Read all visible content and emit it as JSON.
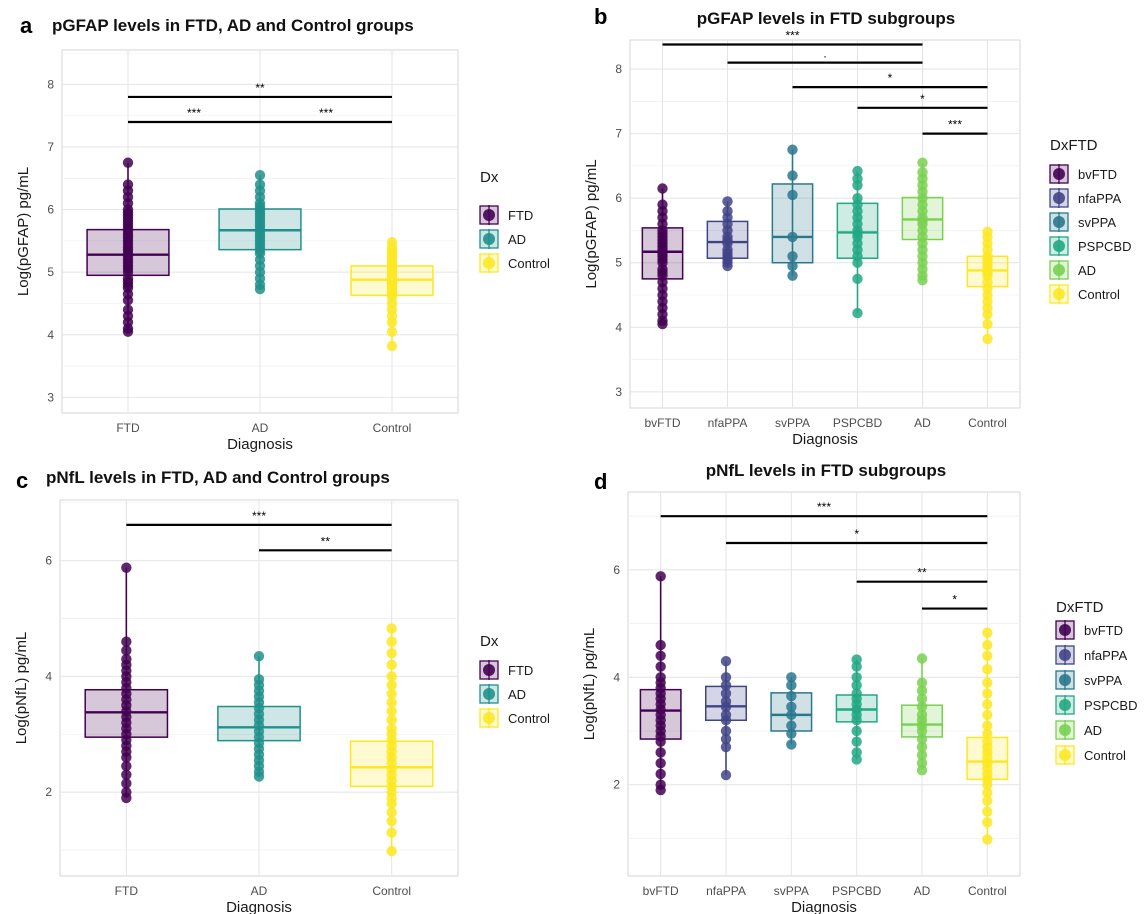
{
  "figure": {
    "panels": [
      {
        "letter": "a",
        "title": "pGFAP levels in FTD, AD and Control groups"
      },
      {
        "letter": "b",
        "title": "pGFAP levels in FTD subgroups"
      },
      {
        "letter": "c",
        "title": "pNfL levels in FTD, AD and Control groups"
      },
      {
        "letter": "d",
        "title": "pNfL levels in FTD subgroups"
      }
    ]
  },
  "colors": {
    "FTD": "#440154",
    "AD": "#21908C",
    "Control": "#FDE725",
    "bvFTD": "#440154",
    "nfaPPA": "#414487",
    "svPPA": "#2A788E",
    "PSPCBD": "#22A884",
    "AD_sub": "#7AD151",
    "Control_sub": "#FDE725"
  },
  "chart_data": [
    {
      "type": "box",
      "panel": "a",
      "title": "pGFAP levels in FTD, AD and Control groups",
      "xlabel": "Diagnosis",
      "ylabel": "Log(pGFAP) pg/mL",
      "ylim": [
        2.75,
        8.55
      ],
      "yticks": [
        3,
        4,
        5,
        6,
        7,
        8
      ],
      "grid": true,
      "categories": [
        "FTD",
        "AD",
        "Control"
      ],
      "legend": {
        "title": "Dx",
        "entries": [
          "FTD",
          "AD",
          "Control"
        ],
        "position": "right"
      },
      "boxes": [
        {
          "name": "FTD",
          "q1": 4.95,
          "median": 5.28,
          "q3": 5.68,
          "min": 4.05,
          "max": 6.75,
          "points": [
            4.05,
            4.1,
            4.2,
            4.3,
            4.4,
            4.55,
            4.65,
            4.75,
            4.8,
            4.85,
            4.9,
            5.0,
            5.05,
            5.1,
            5.15,
            5.2,
            5.25,
            5.3,
            5.35,
            5.4,
            5.45,
            5.5,
            5.55,
            5.6,
            5.65,
            5.7,
            5.75,
            5.8,
            5.85,
            5.9,
            5.95,
            6.0,
            6.1,
            6.2,
            6.3,
            6.4,
            6.75
          ]
        },
        {
          "name": "AD",
          "q1": 5.36,
          "median": 5.67,
          "q3": 6.01,
          "min": 4.73,
          "max": 6.55,
          "points": [
            4.73,
            4.8,
            4.9,
            5.0,
            5.1,
            5.2,
            5.3,
            5.35,
            5.4,
            5.45,
            5.5,
            5.55,
            5.6,
            5.65,
            5.7,
            5.75,
            5.8,
            5.85,
            5.9,
            5.95,
            6.0,
            6.05,
            6.1,
            6.2,
            6.3,
            6.4,
            6.55
          ]
        },
        {
          "name": "Control",
          "q1": 4.63,
          "median": 4.88,
          "q3": 5.1,
          "min": 3.82,
          "max": 5.48,
          "points": [
            3.82,
            4.05,
            4.2,
            4.3,
            4.4,
            4.5,
            4.6,
            4.65,
            4.7,
            4.75,
            4.8,
            4.85,
            4.9,
            4.95,
            5.0,
            5.05,
            5.1,
            5.15,
            5.2,
            5.25,
            5.3,
            5.35,
            5.4,
            5.48
          ]
        }
      ],
      "annotations": [
        {
          "from": "FTD",
          "to": "Control",
          "y": 7.8,
          "label": "**"
        },
        {
          "from": "FTD",
          "to": "AD",
          "y": 7.4,
          "label": "***"
        },
        {
          "from": "AD",
          "to": "Control",
          "y": 7.4,
          "label": "***"
        }
      ]
    },
    {
      "type": "box",
      "panel": "b",
      "title": "pGFAP levels in FTD subgroups",
      "xlabel": "Diagnosis",
      "ylabel": "Log(pGFAP) pg/mL",
      "ylim": [
        2.75,
        8.45
      ],
      "yticks": [
        3,
        4,
        5,
        6,
        7,
        8
      ],
      "grid": true,
      "categories": [
        "bvFTD",
        "nfaPPA",
        "svPPA",
        "PSPCBD",
        "AD",
        "Control"
      ],
      "legend": {
        "title": "DxFTD",
        "entries": [
          "bvFTD",
          "nfaPPA",
          "svPPA",
          "PSPCBD",
          "AD",
          "Control"
        ],
        "position": "right"
      },
      "boxes": [
        {
          "name": "bvFTD",
          "q1": 4.75,
          "median": 5.17,
          "q3": 5.54,
          "min": 4.05,
          "max": 6.15,
          "points": [
            4.05,
            4.1,
            4.2,
            4.3,
            4.4,
            4.5,
            4.6,
            4.7,
            4.8,
            4.85,
            4.9,
            5.0,
            5.05,
            5.1,
            5.15,
            5.2,
            5.25,
            5.3,
            5.35,
            5.4,
            5.45,
            5.5,
            5.6,
            5.7,
            5.8,
            5.9,
            6.15
          ]
        },
        {
          "name": "nfaPPA",
          "q1": 5.07,
          "median": 5.32,
          "q3": 5.64,
          "min": 4.95,
          "max": 5.95,
          "points": [
            4.95,
            5.0,
            5.05,
            5.1,
            5.15,
            5.2,
            5.3,
            5.35,
            5.4,
            5.5,
            5.6,
            5.7,
            5.8,
            5.95
          ]
        },
        {
          "name": "svPPA",
          "q1": 5.0,
          "median": 5.4,
          "q3": 6.22,
          "min": 4.8,
          "max": 6.75,
          "points": [
            4.8,
            4.95,
            5.1,
            5.4,
            6.05,
            6.35,
            6.75
          ]
        },
        {
          "name": "PSPCBD",
          "q1": 5.07,
          "median": 5.47,
          "q3": 5.92,
          "min": 4.22,
          "max": 6.42,
          "points": [
            4.22,
            4.75,
            5.0,
            5.1,
            5.2,
            5.3,
            5.4,
            5.45,
            5.5,
            5.6,
            5.7,
            5.8,
            5.9,
            6.0,
            6.2,
            6.3,
            6.42
          ]
        },
        {
          "name": "AD",
          "q1": 5.36,
          "median": 5.67,
          "q3": 6.01,
          "min": 4.73,
          "max": 6.55,
          "points": [
            4.73,
            4.8,
            4.9,
            5.0,
            5.1,
            5.2,
            5.3,
            5.4,
            5.5,
            5.6,
            5.65,
            5.7,
            5.8,
            5.9,
            6.0,
            6.1,
            6.2,
            6.3,
            6.4,
            6.55
          ]
        },
        {
          "name": "Control",
          "q1": 4.63,
          "median": 4.88,
          "q3": 5.1,
          "min": 3.82,
          "max": 5.48,
          "points": [
            3.82,
            4.05,
            4.2,
            4.3,
            4.4,
            4.5,
            4.6,
            4.7,
            4.8,
            4.85,
            4.9,
            4.95,
            5.0,
            5.05,
            5.1,
            5.2,
            5.3,
            5.4,
            5.48
          ]
        }
      ],
      "annotations": [
        {
          "from": "bvFTD",
          "to": "AD",
          "y": 8.38,
          "label": "***"
        },
        {
          "from": "nfaPPA",
          "to": "AD",
          "y": 8.1,
          "label": "."
        },
        {
          "from": "svPPA",
          "to": "Control",
          "y": 7.72,
          "label": "*"
        },
        {
          "from": "PSPCBD",
          "to": "Control",
          "y": 7.4,
          "label": "*"
        },
        {
          "from": "AD",
          "to": "Control",
          "y": 7.0,
          "label": "***"
        }
      ]
    },
    {
      "type": "box",
      "panel": "c",
      "title": "pNfL levels in FTD, AD and Control groups",
      "xlabel": "Diagnosis",
      "ylabel": "Log(pNfL) pg/mL",
      "ylim": [
        0.55,
        7.05
      ],
      "yticks": [
        2,
        4,
        6
      ],
      "grid": true,
      "categories": [
        "FTD",
        "AD",
        "Control"
      ],
      "legend": {
        "title": "Dx",
        "entries": [
          "FTD",
          "AD",
          "Control"
        ],
        "position": "right"
      },
      "boxes": [
        {
          "name": "FTD",
          "q1": 2.95,
          "median": 3.38,
          "q3": 3.77,
          "min": 1.9,
          "max": 5.88,
          "points": [
            1.9,
            2.0,
            2.15,
            2.3,
            2.45,
            2.6,
            2.7,
            2.8,
            2.9,
            3.0,
            3.1,
            3.2,
            3.3,
            3.4,
            3.5,
            3.6,
            3.7,
            3.8,
            3.9,
            4.0,
            4.1,
            4.2,
            4.3,
            4.45,
            4.6,
            5.88
          ]
        },
        {
          "name": "AD",
          "q1": 2.89,
          "median": 3.12,
          "q3": 3.48,
          "min": 2.27,
          "max": 4.35,
          "points": [
            2.27,
            2.35,
            2.45,
            2.55,
            2.65,
            2.75,
            2.85,
            2.95,
            3.05,
            3.15,
            3.25,
            3.35,
            3.45,
            3.55,
            3.65,
            3.75,
            3.85,
            3.95,
            4.35
          ]
        },
        {
          "name": "Control",
          "q1": 2.1,
          "median": 2.43,
          "q3": 2.88,
          "min": 0.98,
          "max": 4.83,
          "points": [
            0.98,
            1.3,
            1.5,
            1.65,
            1.8,
            1.9,
            2.0,
            2.1,
            2.2,
            2.3,
            2.4,
            2.5,
            2.6,
            2.7,
            2.8,
            2.9,
            3.0,
            3.1,
            3.25,
            3.4,
            3.55,
            3.7,
            3.85,
            4.0,
            4.2,
            4.4,
            4.6,
            4.83
          ]
        }
      ],
      "annotations": [
        {
          "from": "FTD",
          "to": "Control",
          "y": 6.62,
          "label": "***"
        },
        {
          "from": "AD",
          "to": "Control",
          "y": 6.18,
          "label": "**"
        }
      ]
    },
    {
      "type": "box",
      "panel": "d",
      "title": "pNfL levels in FTD subgroups",
      "xlabel": "Diagnosis",
      "ylabel": "Log(pNfL) pg/mL",
      "ylim": [
        0.3,
        7.45
      ],
      "yticks": [
        2,
        4,
        6
      ],
      "grid": true,
      "categories": [
        "bvFTD",
        "nfaPPA",
        "svPPA",
        "PSPCBD",
        "AD",
        "Control"
      ],
      "legend": {
        "title": "DxFTD",
        "entries": [
          "bvFTD",
          "nfaPPA",
          "svPPA",
          "PSPCBD",
          "AD",
          "Control"
        ],
        "position": "right"
      },
      "boxes": [
        {
          "name": "bvFTD",
          "q1": 2.85,
          "median": 3.38,
          "q3": 3.77,
          "min": 1.9,
          "max": 5.88,
          "points": [
            1.9,
            2.0,
            2.2,
            2.4,
            2.6,
            2.8,
            2.9,
            3.0,
            3.1,
            3.2,
            3.3,
            3.4,
            3.5,
            3.6,
            3.7,
            3.8,
            3.9,
            4.0,
            4.2,
            4.4,
            4.6,
            5.88
          ]
        },
        {
          "name": "nfaPPA",
          "q1": 3.2,
          "median": 3.46,
          "q3": 3.83,
          "min": 2.18,
          "max": 4.3,
          "points": [
            2.18,
            2.7,
            2.85,
            3.0,
            3.2,
            3.3,
            3.45,
            3.55,
            3.7,
            3.85,
            4.0,
            4.3
          ]
        },
        {
          "name": "svPPA",
          "q1": 3.0,
          "median": 3.3,
          "q3": 3.71,
          "min": 2.75,
          "max": 4.0,
          "points": [
            2.75,
            2.95,
            3.1,
            3.3,
            3.45,
            3.65,
            3.85,
            4.0
          ]
        },
        {
          "name": "PSPCBD",
          "q1": 3.17,
          "median": 3.4,
          "q3": 3.67,
          "min": 2.47,
          "max": 4.33,
          "points": [
            2.47,
            2.6,
            2.8,
            3.0,
            3.2,
            3.3,
            3.4,
            3.5,
            3.6,
            3.7,
            3.85,
            4.0,
            4.2,
            4.33
          ]
        },
        {
          "name": "AD",
          "q1": 2.89,
          "median": 3.12,
          "q3": 3.48,
          "min": 2.27,
          "max": 4.35,
          "points": [
            2.27,
            2.4,
            2.55,
            2.7,
            2.85,
            3.0,
            3.1,
            3.2,
            3.3,
            3.45,
            3.6,
            3.75,
            3.9,
            4.35
          ]
        },
        {
          "name": "Control",
          "q1": 2.1,
          "median": 2.43,
          "q3": 2.88,
          "min": 0.98,
          "max": 4.83,
          "points": [
            0.98,
            1.3,
            1.5,
            1.7,
            1.85,
            2.0,
            2.1,
            2.2,
            2.3,
            2.4,
            2.5,
            2.6,
            2.7,
            2.8,
            2.95,
            3.1,
            3.3,
            3.5,
            3.7,
            3.9,
            4.15,
            4.4,
            4.6,
            4.83
          ]
        }
      ],
      "annotations": [
        {
          "from": "bvFTD",
          "to": "Control",
          "y": 7.0,
          "label": "***"
        },
        {
          "from": "nfaPPA",
          "to": "Control",
          "y": 6.5,
          "label": "*"
        },
        {
          "from": "PSPCBD",
          "to": "Control",
          "y": 5.78,
          "label": "**"
        },
        {
          "from": "AD",
          "to": "Control",
          "y": 5.28,
          "label": "*"
        }
      ]
    }
  ]
}
